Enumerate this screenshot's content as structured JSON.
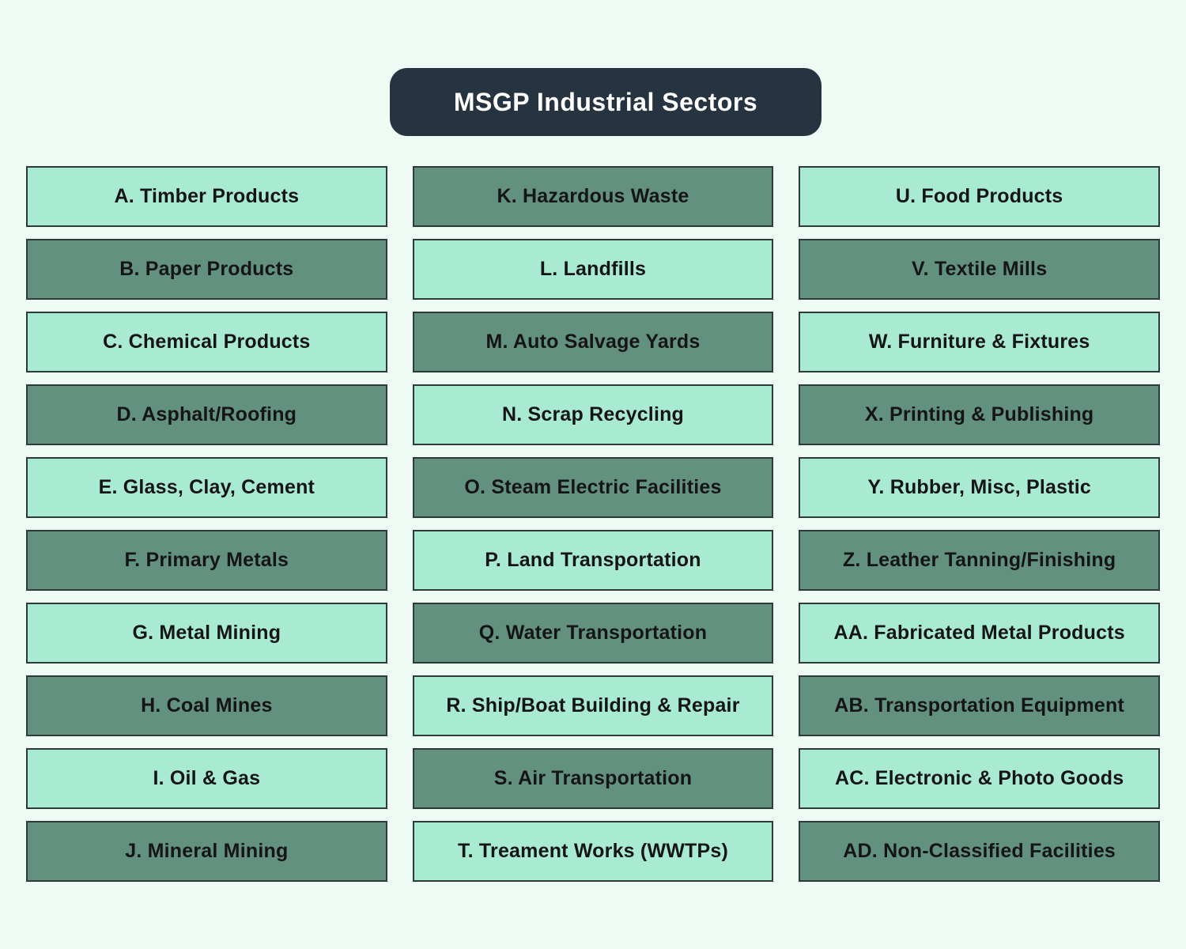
{
  "title": "MSGP Industrial Sectors",
  "colors": {
    "background": "#edfbf4",
    "title_bg": "#263340",
    "title_text": "#ffffff",
    "box_light": "#a8ead2",
    "box_dark": "#62917f",
    "box_border": "#2d3a36",
    "box_text": "#151515"
  },
  "columns": [
    {
      "items": [
        {
          "label": "A. Timber Products",
          "shade": "light"
        },
        {
          "label": "B. Paper Products",
          "shade": "dark"
        },
        {
          "label": "C. Chemical Products",
          "shade": "light"
        },
        {
          "label": "D. Asphalt/Roofing",
          "shade": "dark"
        },
        {
          "label": "E. Glass, Clay, Cement",
          "shade": "light"
        },
        {
          "label": "F. Primary Metals",
          "shade": "dark"
        },
        {
          "label": "G. Metal Mining",
          "shade": "light"
        },
        {
          "label": "H. Coal Mines",
          "shade": "dark"
        },
        {
          "label": "I. Oil & Gas",
          "shade": "light"
        },
        {
          "label": "J. Mineral Mining",
          "shade": "dark"
        }
      ]
    },
    {
      "items": [
        {
          "label": "K. Hazardous Waste",
          "shade": "dark"
        },
        {
          "label": "L. Landfills",
          "shade": "light"
        },
        {
          "label": "M. Auto Salvage Yards",
          "shade": "dark"
        },
        {
          "label": "N. Scrap Recycling",
          "shade": "light"
        },
        {
          "label": "O. Steam Electric Facilities",
          "shade": "dark"
        },
        {
          "label": "P. Land Transportation",
          "shade": "light"
        },
        {
          "label": "Q. Water Transportation",
          "shade": "dark"
        },
        {
          "label": "R. Ship/Boat Building & Repair",
          "shade": "light"
        },
        {
          "label": "S. Air Transportation",
          "shade": "dark"
        },
        {
          "label": "T. Treament Works (WWTPs)",
          "shade": "light"
        }
      ]
    },
    {
      "items": [
        {
          "label": "U. Food Products",
          "shade": "light"
        },
        {
          "label": "V. Textile Mills",
          "shade": "dark"
        },
        {
          "label": "W. Furniture & Fixtures",
          "shade": "light"
        },
        {
          "label": "X. Printing & Publishing",
          "shade": "dark"
        },
        {
          "label": "Y. Rubber, Misc, Plastic",
          "shade": "light"
        },
        {
          "label": "Z. Leather Tanning/Finishing",
          "shade": "dark"
        },
        {
          "label": "AA. Fabricated Metal Products",
          "shade": "light"
        },
        {
          "label": "AB. Transportation Equipment",
          "shade": "dark"
        },
        {
          "label": "AC. Electronic & Photo Goods",
          "shade": "light"
        },
        {
          "label": "AD. Non-Classified Facilities",
          "shade": "dark"
        }
      ]
    }
  ]
}
